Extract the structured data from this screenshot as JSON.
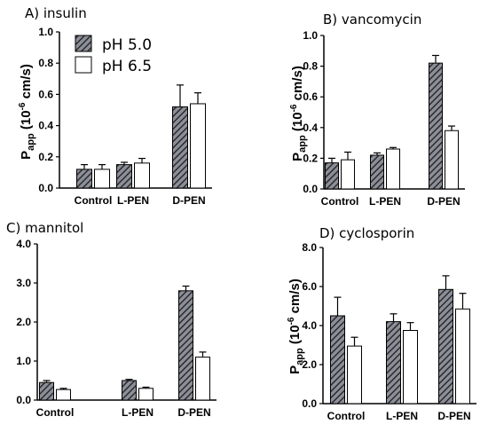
{
  "colors": {
    "ph5_fill": "#8c8f99",
    "ph5_hatch": "#2b2b2b",
    "ph65_fill": "#ffffff",
    "axis": "#000000"
  },
  "legend": {
    "items": [
      {
        "label": "pH 5.0",
        "pattern": "hatched"
      },
      {
        "label": "pH 6.5",
        "pattern": "open"
      }
    ]
  },
  "y_label": {
    "main": "P",
    "sub": "app",
    "rest": " (10",
    "sup": "-6",
    "unit": " cm/s)"
  },
  "chart_data": [
    {
      "type": "bar",
      "title": "A) insulin",
      "categories": [
        "Control",
        "L-PEN",
        "D-PEN"
      ],
      "series": [
        {
          "name": "pH 5.0",
          "values": [
            0.12,
            0.15,
            0.52
          ],
          "errors": [
            0.03,
            0.015,
            0.14
          ]
        },
        {
          "name": "pH 6.5",
          "values": [
            0.12,
            0.16,
            0.54
          ],
          "errors": [
            0.03,
            0.03,
            0.07
          ]
        }
      ],
      "ylim": [
        0,
        1.0
      ],
      "yticks": [
        "0.0",
        "0.2",
        "0.4",
        "0.6",
        "0.8",
        "1.0"
      ],
      "ylabel": "Papp (10-6 cm/s)",
      "show_ylabel": true
    },
    {
      "type": "bar",
      "title": "B) vancomycin",
      "categories": [
        "Control",
        "L-PEN",
        "D-PEN"
      ],
      "series": [
        {
          "name": "pH 5.0",
          "values": [
            0.17,
            0.22,
            0.82
          ],
          "errors": [
            0.03,
            0.015,
            0.05
          ]
        },
        {
          "name": "pH 6.5",
          "values": [
            0.19,
            0.26,
            0.38
          ],
          "errors": [
            0.05,
            0.01,
            0.03
          ]
        }
      ],
      "ylim": [
        0,
        1.0
      ],
      "yticks": [
        "0.0",
        "0.2",
        "0.4",
        "0.6",
        "0.8",
        "1.0"
      ],
      "ylabel": "Papp (10-6 cm/s)",
      "show_ylabel": true
    },
    {
      "type": "bar",
      "title": "C) mannitol",
      "categories": [
        "Control",
        "L-PEN",
        "D-PEN"
      ],
      "series": [
        {
          "name": "pH 5.0",
          "values": [
            0.45,
            0.5,
            2.8
          ],
          "errors": [
            0.05,
            0.03,
            0.12
          ]
        },
        {
          "name": "pH 6.5",
          "values": [
            0.27,
            0.3,
            1.1
          ],
          "errors": [
            0.03,
            0.03,
            0.13
          ]
        }
      ],
      "ylim": [
        0,
        4.0
      ],
      "yticks": [
        "0.0",
        "1.0",
        "2.0",
        "3.0",
        "4.0"
      ],
      "ylabel": "",
      "show_ylabel": false
    },
    {
      "type": "bar",
      "title": "D) cyclosporin",
      "categories": [
        "Control",
        "L-PEN",
        "D-PEN"
      ],
      "series": [
        {
          "name": "pH 5.0",
          "values": [
            4.5,
            4.2,
            5.85
          ],
          "errors": [
            0.95,
            0.4,
            0.7
          ]
        },
        {
          "name": "pH 6.5",
          "values": [
            2.95,
            3.75,
            4.85
          ],
          "errors": [
            0.45,
            0.4,
            0.8
          ]
        }
      ],
      "ylim": [
        0,
        8.0
      ],
      "yticks": [
        "0.0",
        "2.0",
        "4.0",
        "6.0",
        "8.0"
      ],
      "ylabel": "Papp (10-6 cm/s)",
      "show_ylabel": true
    }
  ]
}
